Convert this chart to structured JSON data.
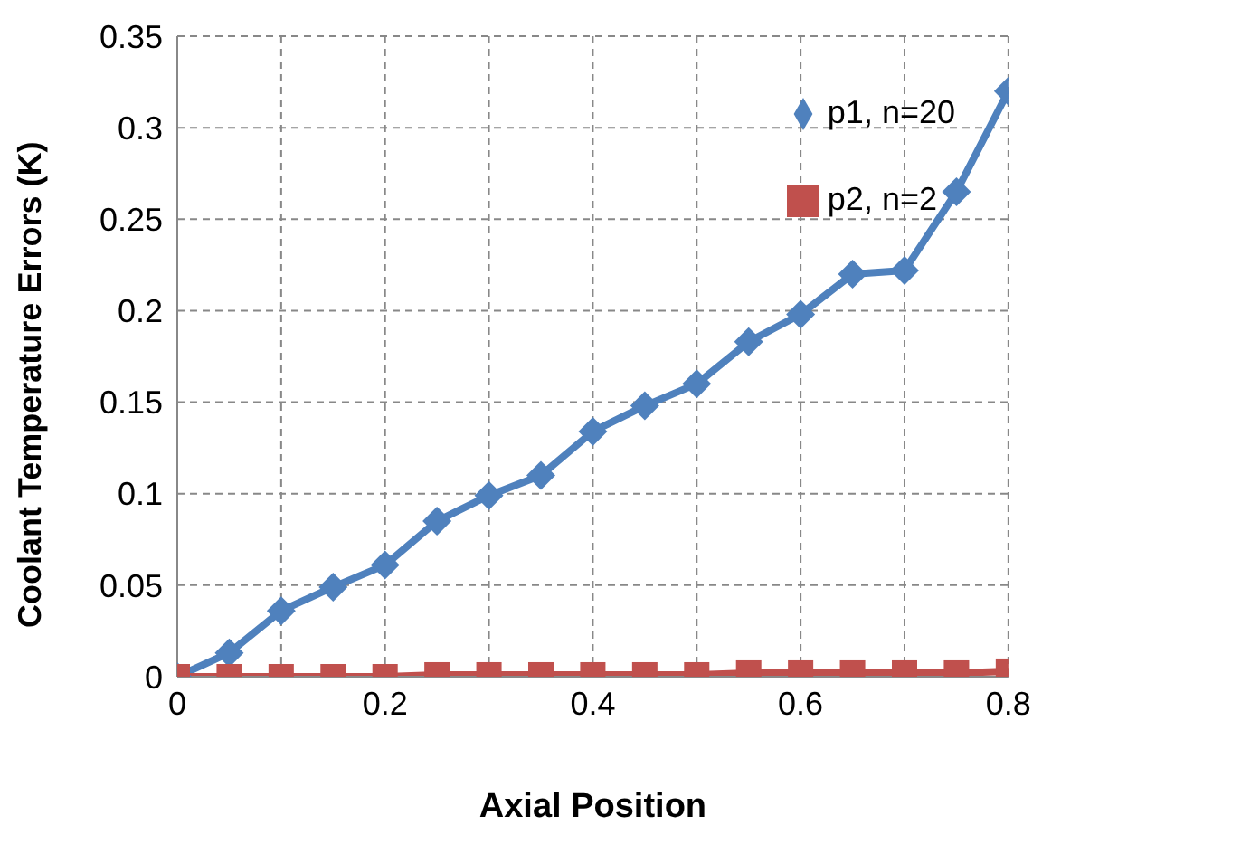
{
  "chart_data": {
    "type": "line",
    "xlabel": "Axial Position",
    "ylabel": "Coolant Temperature Errors (K)",
    "x": [
      0,
      0.05,
      0.1,
      0.15,
      0.2,
      0.25,
      0.3,
      0.35,
      0.4,
      0.45,
      0.5,
      0.55,
      0.6,
      0.65,
      0.7,
      0.75,
      0.8
    ],
    "series": [
      {
        "name": "p1, n=20",
        "color": "#4f81bd",
        "marker": "diamond",
        "values": [
          0,
          0.013,
          0.036,
          0.049,
          0.061,
          0.085,
          0.099,
          0.11,
          0.134,
          0.148,
          0.16,
          0.183,
          0.198,
          0.22,
          0.222,
          0.265,
          0.32
        ]
      },
      {
        "name": "p2, n=2",
        "color": "#c0504d",
        "marker": "square",
        "values": [
          0,
          0,
          0,
          0,
          0,
          0.001,
          0.001,
          0.001,
          0.001,
          0.001,
          0.001,
          0.002,
          0.002,
          0.002,
          0.002,
          0.002,
          0.003
        ]
      }
    ],
    "xlim": [
      0,
      0.8
    ],
    "xticks": [
      0,
      {
        "value": 0.1,
        "label": null
      },
      0.2,
      {
        "value": 0.3,
        "label": null
      },
      0.4,
      {
        "value": 0.5,
        "label": null
      },
      0.6,
      {
        "value": 0.7,
        "label": null
      },
      0.8
    ],
    "ylim": [
      0,
      0.35
    ],
    "yticks": [
      0,
      0.05,
      0.1,
      0.15,
      0.2,
      0.25,
      0.3,
      0.35
    ],
    "grid": true,
    "legend": "top right",
    "line_style": "solid"
  }
}
